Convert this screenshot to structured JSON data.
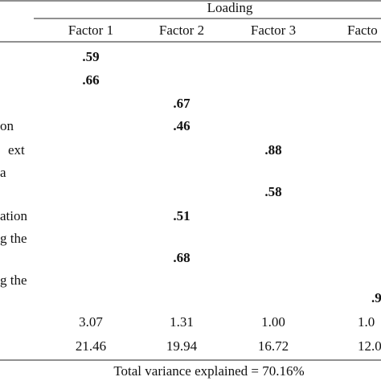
{
  "table": {
    "group_header": "Loading",
    "columns": [
      "Factor 1",
      "Factor 2",
      "Factor 3",
      "Facto"
    ],
    "rows": [
      {
        "label": null,
        "cells": [
          ".59",
          null,
          null,
          null
        ]
      },
      {
        "label": null,
        "cells": [
          ".66",
          null,
          null,
          null
        ]
      },
      {
        "label": null,
        "cells": [
          null,
          ".67",
          null,
          null
        ]
      },
      {
        "label": "on",
        "cells": [
          null,
          ".46",
          null,
          null
        ]
      },
      {
        "label": "ext",
        "cells": [
          null,
          null,
          ".88",
          null
        ]
      },
      {
        "label": "a",
        "cells": [
          null,
          null,
          null,
          null
        ]
      },
      {
        "label": null,
        "cells": [
          null,
          null,
          ".58",
          null
        ]
      },
      {
        "label": "ation",
        "cells": [
          null,
          ".51",
          null,
          null
        ]
      },
      {
        "label": "g the",
        "cells": [
          null,
          null,
          null,
          null
        ]
      },
      {
        "label": null,
        "cells": [
          null,
          ".68",
          null,
          null
        ]
      },
      {
        "label": "g the",
        "cells": [
          null,
          null,
          null,
          null
        ]
      },
      {
        "label": null,
        "cells": [
          null,
          null,
          null,
          ".9"
        ]
      },
      {
        "label": null,
        "cells": [
          "3.07",
          "1.31",
          "1.00",
          "1.0"
        ]
      },
      {
        "label": null,
        "cells": [
          "21.46",
          "19.94",
          "16.72",
          "12.0"
        ]
      }
    ],
    "footer": "Total variance explained = 70.16%"
  }
}
